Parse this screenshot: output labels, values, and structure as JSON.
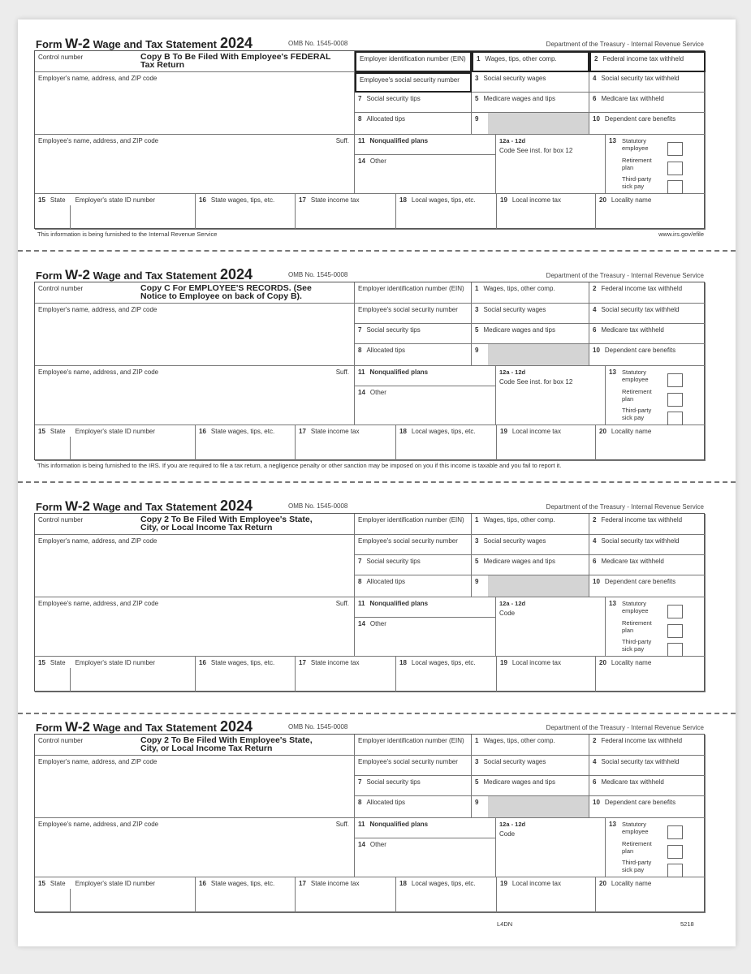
{
  "header": {
    "form_label": "Form",
    "form_name": "W-2",
    "form_title": "Wage and Tax Statement",
    "year": "2024",
    "omb": "OMB No. 1545-0008",
    "department": "Department of the Treasury - Internal Revenue Service"
  },
  "labels": {
    "control": "Control number",
    "ein": "Employer identification number (EIN)",
    "box1": "Wages, tips, other comp.",
    "box2": "Federal income tax withheld",
    "employer": "Employer's name, address, and ZIP code",
    "ssn": "Employee's social security number",
    "box3": "Social security wages",
    "box4": "Social security tax withheld",
    "box7": "Social security tips",
    "box5": "Medicare wages and tips",
    "box6": "Medicare tax withheld",
    "box8": "Allocated tips",
    "box9": "",
    "box10": "Dependent care benefits",
    "employee": "Employee's name, address, and ZIP code",
    "suff": "Suff.",
    "box11": "Nonqualified plans",
    "box12": "12a - 12d",
    "box13_statutory": "Statutory employee",
    "box13_retirement": "Retirement plan",
    "box13_thirdparty": "Third-party sick pay",
    "box14": "Other",
    "box15_state": "State",
    "box15_id": "Employer's state ID number",
    "box16": "State wages, tips, etc.",
    "box17": "State income tax",
    "box18": "Local wages, tips, etc.",
    "box19": "Local income tax",
    "box20": "Locality name"
  },
  "forms": [
    {
      "copy": "Copy B To Be Filed With Employee's FEDERAL\nTax Return",
      "box12_code": "Code   See inst. for box 12",
      "footer": "This information is being furnished to the  Internal Revenue Service",
      "footer_right": "www.irs.gov/efile",
      "bold_boxes": true
    },
    {
      "copy": "Copy C For EMPLOYEE'S RECORDS. (See\nNotice to Employee on back of Copy B).",
      "box12_code": "Code   See inst. for box 12",
      "footer": "This information is being furnished to the IRS.  If you are required to file a tax return, a negligence penalty or other sanction may be imposed on you if this income is taxable and you fail to report it.",
      "footer_right": "",
      "bold_boxes": false
    },
    {
      "copy": "Copy 2 To Be Filed With Employee's State,\nCity, or Local Income Tax Return",
      "box12_code": "Code",
      "footer": "",
      "footer_right": "",
      "bold_boxes": false
    },
    {
      "copy": "Copy 2 To Be Filed With Employee's State,\nCity, or Local Income Tax Return",
      "box12_code": "Code",
      "footer": "",
      "footer_right": "",
      "bold_boxes": false
    }
  ],
  "page_footer": {
    "code": "L4DN",
    "number": "5218"
  }
}
